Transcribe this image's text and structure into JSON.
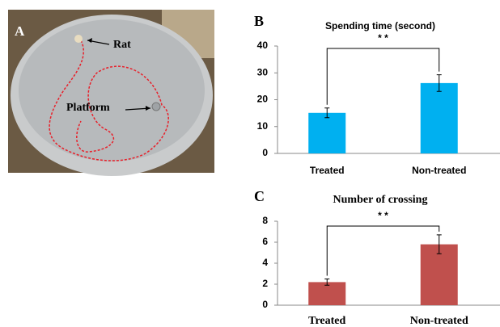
{
  "photo": {
    "panel_label": "A",
    "labels": [
      "Rat",
      "Platform"
    ]
  },
  "chart_data": [
    {
      "type": "bar",
      "panel_label": "B",
      "title": "Spending time (second)",
      "categories": [
        "Treated",
        "Non-treated"
      ],
      "values": [
        15.1,
        26.2
      ],
      "errors": [
        1.8,
        3.1
      ],
      "color": "#00b0f0",
      "ylim": [
        0,
        40
      ],
      "yticks": [
        0,
        10,
        20,
        30,
        40
      ],
      "grid": false,
      "annotation": "* *"
    },
    {
      "type": "bar",
      "panel_label": "C",
      "title": "Number of crossing",
      "categories": [
        "Treated",
        "Non-treated"
      ],
      "values": [
        2.2,
        5.8
      ],
      "errors": [
        0.3,
        0.9
      ],
      "color": "#c0504d",
      "ylim": [
        0,
        8
      ],
      "yticks": [
        0,
        2,
        4,
        6,
        8
      ],
      "grid": false,
      "annotation": "* *"
    }
  ]
}
